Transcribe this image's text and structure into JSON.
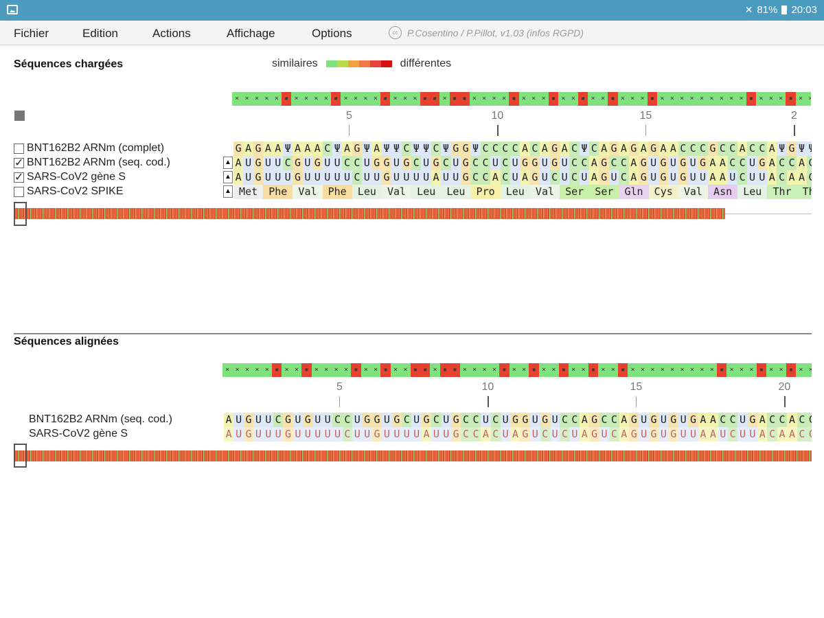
{
  "statusbar": {
    "battery": "81%",
    "time": "20:03"
  },
  "menu": {
    "items": [
      "Fichier",
      "Edition",
      "Actions",
      "Affichage",
      "Options"
    ],
    "credit": "P.Cosentino / P.Pillot, v1.03 (infos RGPD)",
    "cc_icon_text": "cc"
  },
  "loaded": {
    "title": "Séquences chargées",
    "legend_left": "similaires",
    "legend_right": "différentes",
    "legend_colors": [
      "#7fe27f",
      "#b9dc4a",
      "#f2a142",
      "#f07848",
      "#e8403a",
      "#d91010"
    ],
    "rows": [
      {
        "name": "BNT162B2 ARNm (complet)",
        "checked": false
      },
      {
        "name": "BNT162B2 ARNm (seq. cod.)",
        "checked": true
      },
      {
        "name": "SARS-CoV2 gène S",
        "checked": true
      },
      {
        "name": "SARS-CoV2 SPIKE",
        "checked": false
      }
    ],
    "ruler_labels": [
      "5",
      "10",
      "15",
      "2"
    ]
  },
  "aligned": {
    "title": "Séquences alignées",
    "rows": [
      "BNT162B2 ARNm (seq. cod.)",
      "SARS-CoV2 gène S"
    ],
    "ruler_labels": [
      "5",
      "10",
      "15",
      "20"
    ]
  },
  "sequences": {
    "complete": "GAGAAΨAAACΨAGΨAΨΨCΨΨCΨGGΨCCCCACAGACΨCAGAGAGAACCCGCCACCAΨGΨΨ",
    "bnt_cod": "AUGUUCGUGUUCCUGGUGCUGCUGCCUCUGGUGUCCAGCCAGUGUGUGAACCUGACCACC",
    "sars_s": "AUGUUUGUUUUUCUUGUUUUAUUGCCACUAGUCUCUAGUCAGUGUGUUAAUCUUACAACC",
    "spike": [
      "Met",
      "Phe",
      "Val",
      "Phe",
      "Leu",
      "Val",
      "Leu",
      "Leu",
      "Pro",
      "Leu",
      "Val",
      "Ser",
      "Ser",
      "Gln",
      "Cys",
      "Val",
      "Asn",
      "Leu",
      "Thr",
      "Thr"
    ],
    "sim_top": "xxxxx-xxxx-xxxx-xxx--x--xxxx-xxx-xx-xx-xxx-xxxxxxxxx-xxx-xx-xx",
    "sim_aligned": "xxxxx-xx-xxxx-xx-xx--x--xxxx-xx-xx-xx-xx-xxxxxxxxx-xxx-xx-xx-xxx"
  },
  "colors": {
    "A": "#f3f3b0",
    "C": "#c8ecb8",
    "G": "#f7e3ad",
    "U": "#dce7f7",
    "Ψ": "#dce7f7",
    "sim_same": "#7fe27f",
    "sim_diff": "#e8402f",
    "aa": {
      "Met": "#eeeeee",
      "Phe": "#f9dca0",
      "Val": "#eef3e8",
      "Leu": "#e4f2e4",
      "Pro": "#f6f0a8",
      "Ser": "#c9f0a8",
      "Gln": "#e9d1f0",
      "Cys": "#f4f0c8",
      "Asn": "#e5ccf0",
      "Thr": "#cbefb8"
    }
  }
}
